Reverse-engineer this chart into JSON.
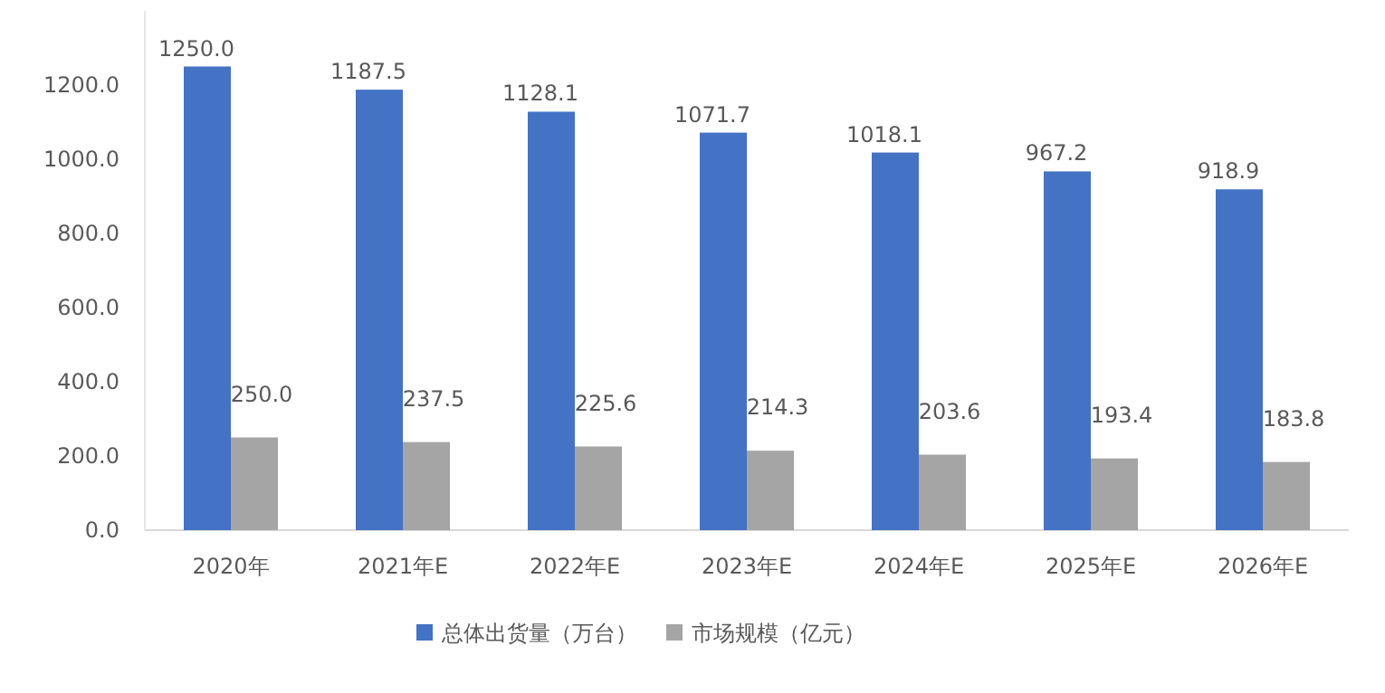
{
  "chart_data": {
    "type": "bar",
    "categories": [
      "2020年",
      "2021年E",
      "2022年E",
      "2023年E",
      "2024年E",
      "2025年E",
      "2026年E"
    ],
    "series": [
      {
        "name": "总体出货量（万台）",
        "color": "#4472c4",
        "values": [
          1250.0,
          1187.5,
          1128.1,
          1071.7,
          1018.1,
          967.2,
          918.9
        ],
        "value_labels": [
          "1250.0",
          "1187.5",
          "1128.1",
          "1071.7",
          "1018.1",
          "967.2",
          "918.9"
        ]
      },
      {
        "name": "市场规模（亿元）",
        "color": "#a5a5a5",
        "values": [
          250.0,
          237.5,
          225.6,
          214.3,
          203.6,
          193.4,
          183.8
        ],
        "value_labels": [
          "250.0",
          "237.5",
          "225.6",
          "214.3",
          "203.6",
          "193.4",
          "183.8"
        ]
      }
    ],
    "ylim": [
      0,
      1400
    ],
    "yticks": [
      {
        "value": 0,
        "label": "0.0"
      },
      {
        "value": 200,
        "label": "200.0"
      },
      {
        "value": 400,
        "label": "400.0"
      },
      {
        "value": 600,
        "label": "600.0"
      },
      {
        "value": 800,
        "label": "800.0"
      },
      {
        "value": 1000,
        "label": "1000.0"
      },
      {
        "value": 1200,
        "label": "1200.0"
      }
    ],
    "grid": false,
    "legend": "bottom"
  }
}
